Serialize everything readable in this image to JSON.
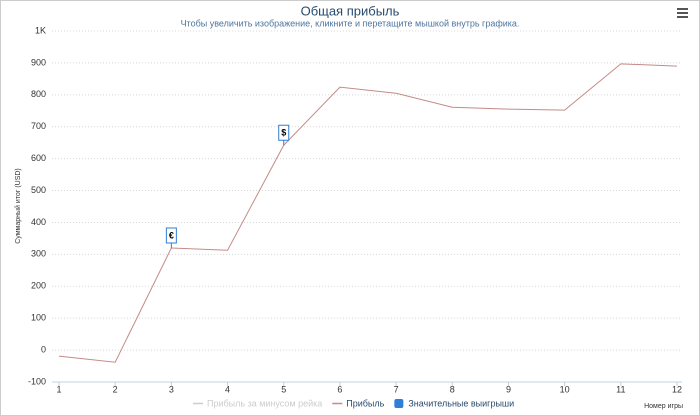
{
  "chart_data": {
    "type": "line",
    "title": "Общая прибыль",
    "subtitle": "Чтобы увеличить изображение, кликните и перетащите мышкой внутрь графика.",
    "y_label": "Суммарный итог (USD)",
    "x_label": "Номер игры",
    "x": [
      1,
      2,
      3,
      4,
      5,
      6,
      7,
      8,
      9,
      10,
      11,
      12
    ],
    "series": [
      {
        "name": "Прибыль за минусом рейка",
        "color": "#cccccc",
        "hidden": true
      },
      {
        "name": "Прибыль",
        "color": "#c48b87",
        "values": [
          -19,
          -38,
          320,
          313,
          642,
          824,
          805,
          761,
          755,
          752,
          897,
          890
        ]
      },
      {
        "name": "Значительные выигрыши",
        "color": "#2f7ed8",
        "type": "flags",
        "points": [
          {
            "x": 3,
            "label": "€"
          },
          {
            "x": 5,
            "label": "$"
          }
        ]
      }
    ],
    "xlim": [
      1,
      12
    ],
    "xticks": [
      1,
      2,
      3,
      4,
      5,
      6,
      7,
      8,
      9,
      10,
      11,
      12
    ],
    "ylim": [
      -100,
      1000
    ],
    "yticks": [
      -100,
      0,
      100,
      200,
      300,
      400,
      500,
      600,
      700,
      800,
      900,
      {
        "value": 1000,
        "label": "1K"
      }
    ],
    "grid": true
  }
}
